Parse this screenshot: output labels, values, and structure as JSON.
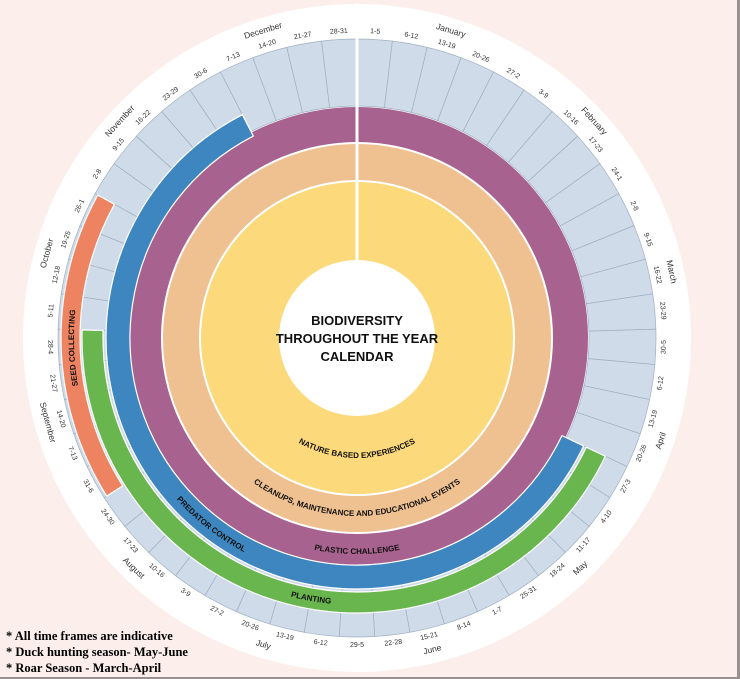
{
  "title": {
    "lines": [
      "BIODIVERSITY",
      "THROUGHOUT THE YEAR",
      "CALENDAR"
    ]
  },
  "notes": [
    "All time frames are indicative",
    "Duck hunting season- May-June",
    "Roar Season - March-April"
  ],
  "months": [
    {
      "name": "January",
      "weeks": [
        "1-5",
        "6-12",
        "13-19",
        "20-26",
        "27-2"
      ]
    },
    {
      "name": "February",
      "weeks": [
        "3-9",
        "10-16",
        "17-23",
        "24-1"
      ]
    },
    {
      "name": "March",
      "weeks": [
        "2-8",
        "9-15",
        "16-22",
        "23-29",
        "30-5"
      ]
    },
    {
      "name": "April",
      "weeks": [
        "6-12",
        "13-19",
        "20-26",
        "27-3"
      ]
    },
    {
      "name": "May",
      "weeks": [
        "4-10",
        "11-17",
        "18-24",
        "25-31"
      ]
    },
    {
      "name": "June",
      "weeks": [
        "1-7",
        "8-14",
        "15-21",
        "22-28",
        "29-5"
      ]
    },
    {
      "name": "July",
      "weeks": [
        "6-12",
        "13-19",
        "20-26",
        "27-2"
      ]
    },
    {
      "name": "August",
      "weeks": [
        "3-9",
        "10-16",
        "17-23",
        "24-30"
      ]
    },
    {
      "name": "September",
      "weeks": [
        "31-6",
        "7-13",
        "14-20",
        "21-27",
        "28-4"
      ]
    },
    {
      "name": "October",
      "weeks": [
        "5-11",
        "12-18",
        "19-25",
        "26-1"
      ]
    },
    {
      "name": "November",
      "weeks": [
        "2-8",
        "9-15",
        "16-22",
        "23-29"
      ]
    },
    {
      "name": "December",
      "weeks": [
        "30-6",
        "7-13",
        "14-20",
        "21-27",
        "28-31"
      ]
    }
  ],
  "activities": [
    {
      "id": "nature",
      "label": "NATURE BASED EXPERIENCES",
      "color": "#fcd97a",
      "period": "all year"
    },
    {
      "id": "cleanups",
      "label": "CLEANUPS, MAINTENANCE AND EDUCATIONAL EVENTS",
      "color": "#f0c190",
      "period": "all year"
    },
    {
      "id": "plastic",
      "label": "PLASTIC CHALLENGE",
      "color": "#a8628f",
      "period": "all year"
    },
    {
      "id": "predator",
      "label": "PREDATOR CONTROL",
      "color": "#3e86c0",
      "from": {
        "month": "April",
        "week": "27-3"
      },
      "to": {
        "month": "December",
        "week": "30-6"
      }
    },
    {
      "id": "planting",
      "label": "PLANTING",
      "color": "#6ab64e",
      "from": {
        "month": "April",
        "week": "27-3"
      },
      "to": {
        "month": "September",
        "week": "28-4"
      }
    },
    {
      "id": "seed",
      "label": "SEED COLLECTING",
      "color": "#ee8362",
      "from": {
        "month": "September",
        "week": "31-6"
      },
      "to": {
        "month": "October",
        "week": "26-1"
      }
    }
  ],
  "colors": {
    "background": "#fcefeb",
    "week_band": "#cfdbe8",
    "outer_ring": "#ffffff"
  }
}
